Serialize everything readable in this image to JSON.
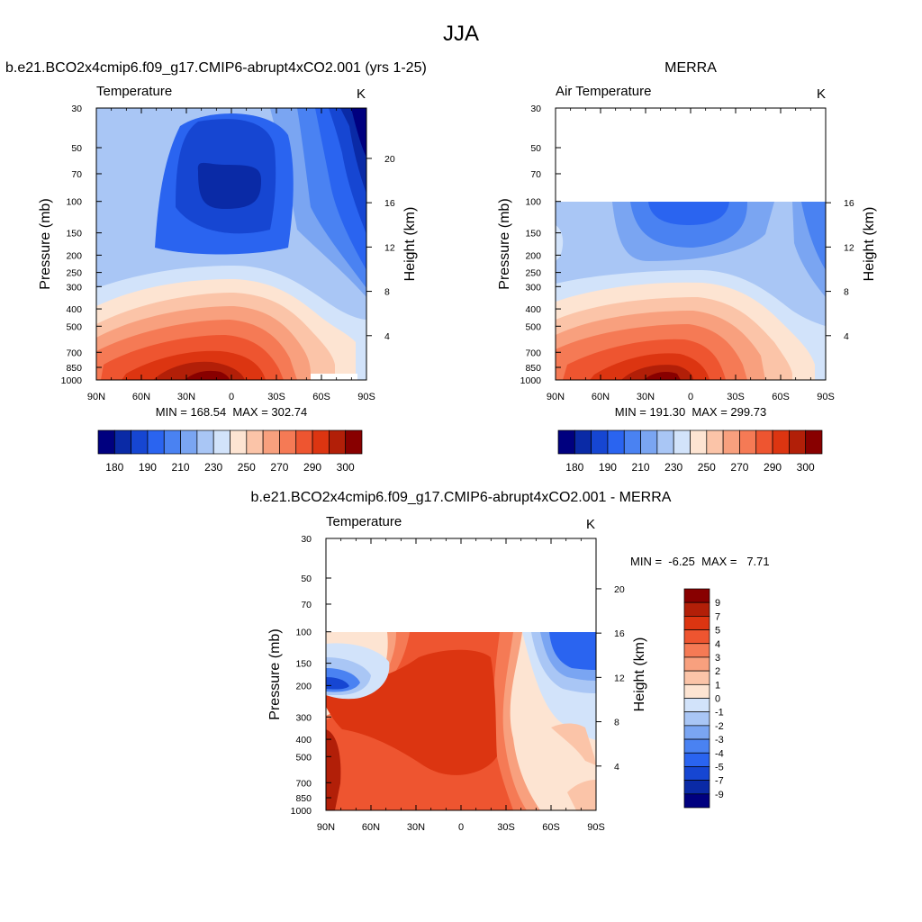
{
  "page": {
    "title": "JJA"
  },
  "panels": {
    "model": {
      "title": "b.e21.BCO2x4cmip6.f09_g17.CMIP6-abrupt4xCO2.001 (yrs 1-25)",
      "left_label": "Temperature",
      "units": "K",
      "stats": "MIN = 168.54  MAX = 302.74"
    },
    "obs": {
      "title": "MERRA",
      "left_label": "Air Temperature",
      "units": "K",
      "stats": "MIN = 191.30  MAX = 299.73"
    },
    "diff": {
      "title": "b.e21.BCO2x4cmip6.f09_g17.CMIP6-abrupt4xCO2.001 - MERRA",
      "left_label": "Temperature",
      "units": "K",
      "stats": "MIN =  -6.25  MAX =   7.71"
    }
  },
  "chart_data": [
    {
      "type": "heatmap",
      "title": "Temperature",
      "ylabel": "Pressure (mb)",
      "ylabel_right": "Height (km)",
      "x_ticks": [
        "90N",
        "60N",
        "30N",
        "0",
        "30S",
        "60S",
        "90S"
      ],
      "y_ticks": [
        "30",
        "50",
        "70",
        "100",
        "150",
        "200",
        "250",
        "300",
        "400",
        "500",
        "700",
        "850",
        "1000"
      ],
      "y_ticks_right": [
        "20",
        "16",
        "12",
        "8",
        "4"
      ],
      "ylim": [
        1000,
        30
      ],
      "min": 168.54,
      "max": 302.74,
      "colorbar_ticks": [
        "180",
        "190",
        "210",
        "230",
        "250",
        "270",
        "290",
        "300"
      ]
    },
    {
      "type": "heatmap",
      "title": "Air Temperature",
      "ylabel": "Pressure (mb)",
      "ylabel_right": "Height (km)",
      "x_ticks": [
        "90N",
        "60N",
        "30N",
        "0",
        "30S",
        "60S",
        "90S"
      ],
      "y_ticks": [
        "30",
        "50",
        "70",
        "100",
        "150",
        "200",
        "250",
        "300",
        "400",
        "500",
        "700",
        "850",
        "1000"
      ],
      "y_ticks_right": [
        "16",
        "12",
        "8",
        "4"
      ],
      "ylim": [
        1000,
        30
      ],
      "min": 191.3,
      "max": 299.73,
      "colorbar_ticks": [
        "180",
        "190",
        "210",
        "230",
        "250",
        "270",
        "290",
        "300"
      ]
    },
    {
      "type": "heatmap",
      "title": "Temperature",
      "ylabel": "Pressure (mb)",
      "ylabel_right": "Height (km)",
      "x_ticks": [
        "90N",
        "60N",
        "30N",
        "0",
        "30S",
        "60S",
        "90S"
      ],
      "y_ticks": [
        "30",
        "50",
        "70",
        "100",
        "150",
        "200",
        "300",
        "400",
        "500",
        "700",
        "850",
        "1000"
      ],
      "y_ticks_right": [
        "20",
        "16",
        "12",
        "8",
        "4"
      ],
      "ylim": [
        1000,
        30
      ],
      "min": -6.25,
      "max": 7.71,
      "colorbar_ticks": [
        "9",
        "7",
        "5",
        "4",
        "3",
        "2",
        "1",
        "0",
        "-1",
        "-2",
        "-3",
        "-4",
        "-5",
        "-7",
        "-9"
      ]
    }
  ],
  "colors": {
    "abs_palette": [
      "#00007f",
      "#0a2aa6",
      "#1646d2",
      "#2a64f0",
      "#4a82f2",
      "#7aa5f2",
      "#a9c6f5",
      "#d2e3fa",
      "#fde4d2",
      "#fbc4a8",
      "#f8a07e",
      "#f57a55",
      "#ee5530",
      "#dc3511",
      "#b21f08",
      "#880000"
    ],
    "diff_palette": [
      "#00007f",
      "#0a2aa6",
      "#1646d2",
      "#2a64f0",
      "#4a82f2",
      "#7aa5f2",
      "#a9c6f5",
      "#d2e3fa",
      "#fde4d2",
      "#fbc4a8",
      "#f8a07e",
      "#f57a55",
      "#ee5530",
      "#dc3511",
      "#b21f08",
      "#880000"
    ]
  }
}
